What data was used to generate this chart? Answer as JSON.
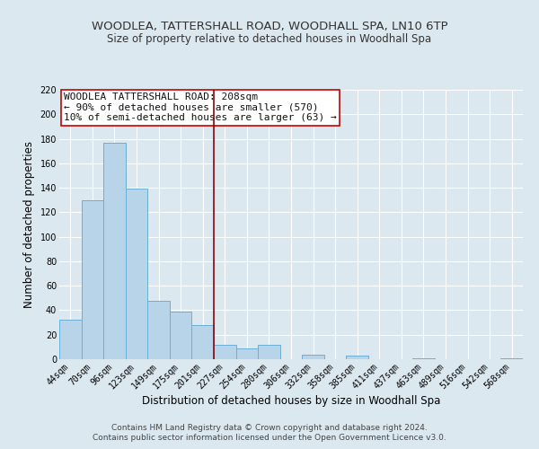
{
  "title": "WOODLEA, TATTERSHALL ROAD, WOODHALL SPA, LN10 6TP",
  "subtitle": "Size of property relative to detached houses in Woodhall Spa",
  "xlabel": "Distribution of detached houses by size in Woodhall Spa",
  "ylabel": "Number of detached properties",
  "bar_labels": [
    "44sqm",
    "70sqm",
    "96sqm",
    "123sqm",
    "149sqm",
    "175sqm",
    "201sqm",
    "227sqm",
    "254sqm",
    "280sqm",
    "306sqm",
    "332sqm",
    "358sqm",
    "385sqm",
    "411sqm",
    "437sqm",
    "463sqm",
    "489sqm",
    "516sqm",
    "542sqm",
    "568sqm"
  ],
  "bar_values": [
    32,
    130,
    177,
    139,
    48,
    39,
    28,
    12,
    9,
    12,
    0,
    4,
    0,
    3,
    0,
    0,
    1,
    0,
    0,
    0,
    1
  ],
  "bar_color": "#b8d4e8",
  "bar_edge_color": "#6baed6",
  "background_color": "#dce8f0",
  "plot_bg_color": "#dce8f0",
  "grid_color": "#ffffff",
  "vline_color": "#990000",
  "annotation_title": "WOODLEA TATTERSHALL ROAD: 208sqm",
  "annotation_line1": "← 90% of detached houses are smaller (570)",
  "annotation_line2": "10% of semi-detached houses are larger (63) →",
  "annotation_box_color": "#ffffff",
  "annotation_border_color": "#cc0000",
  "footer_line1": "Contains HM Land Registry data © Crown copyright and database right 2024.",
  "footer_line2": "Contains public sector information licensed under the Open Government Licence v3.0.",
  "ylim": [
    0,
    220
  ],
  "yticks": [
    0,
    20,
    40,
    60,
    80,
    100,
    120,
    140,
    160,
    180,
    200,
    220
  ],
  "title_fontsize": 9.5,
  "subtitle_fontsize": 8.5,
  "axis_label_fontsize": 8.5,
  "tick_fontsize": 7,
  "annot_fontsize": 8,
  "footer_fontsize": 6.5
}
